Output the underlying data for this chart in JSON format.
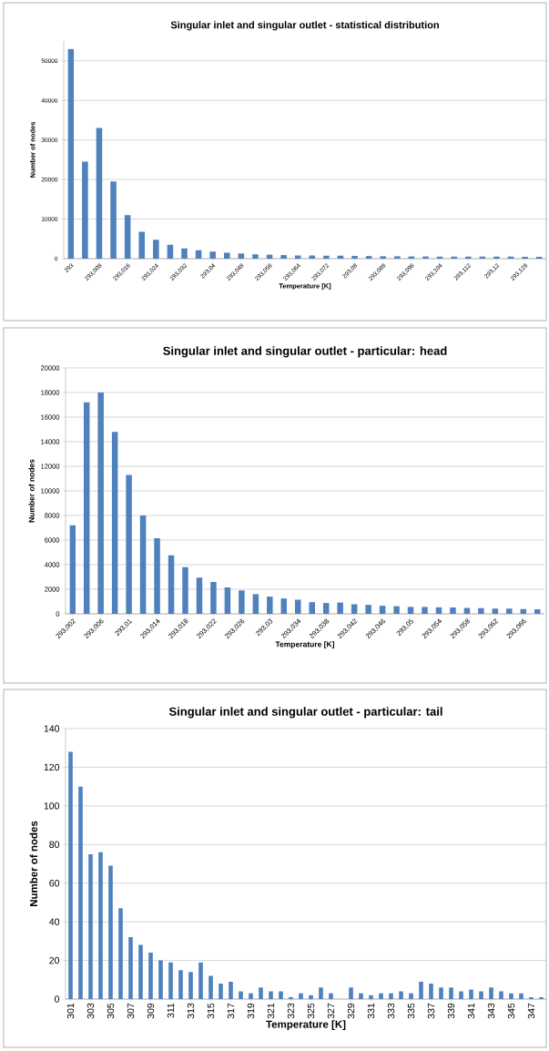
{
  "chart_data": [
    {
      "type": "bar",
      "title": "Singular inlet and singular outlet - statistical distribution",
      "xlabel": "Temperature [K]",
      "ylabel": "Number of nodes",
      "color": "#4f81bd",
      "grid": "y",
      "categories": [
        "293",
        null,
        "293,008",
        null,
        "293,016",
        null,
        "293,024",
        null,
        "293,032",
        null,
        "293,04",
        null,
        "293,048",
        null,
        "293,056",
        null,
        "293,064",
        null,
        "293,072",
        null,
        "293,08",
        null,
        "293,088",
        null,
        "293,096",
        null,
        "293,104",
        null,
        "293,112",
        null,
        "293,12",
        null,
        "293,128",
        null
      ],
      "values": [
        53000,
        24500,
        33000,
        19500,
        11000,
        6800,
        4800,
        3500,
        2600,
        2100,
        1800,
        1500,
        1300,
        1100,
        1000,
        900,
        800,
        800,
        750,
        750,
        700,
        650,
        600,
        600,
        550,
        550,
        500,
        500,
        500,
        500,
        500,
        500,
        450,
        450
      ],
      "ylim": [
        0,
        55000
      ],
      "yticks": [
        0,
        10000,
        20000,
        30000,
        40000,
        50000
      ]
    },
    {
      "type": "bar",
      "title": "Singular inlet and singular outlet - particular: head",
      "xlabel": "Temperature [K]",
      "ylabel": "Number of nodes",
      "color": "#4f81bd",
      "grid": "y",
      "categories": [
        "293,002",
        null,
        "293,006",
        null,
        "293,01",
        null,
        "293,014",
        null,
        "293,018",
        null,
        "293,022",
        null,
        "293,026",
        null,
        "293,03",
        null,
        "293,034",
        null,
        "293,038",
        null,
        "293,042",
        null,
        "293,046",
        null,
        "293,05",
        null,
        "293,054",
        null,
        "293,058",
        null,
        "293,062",
        null,
        "293,066",
        null
      ],
      "values": [
        7200,
        17200,
        18000,
        14800,
        11300,
        8000,
        6150,
        4750,
        3800,
        2950,
        2600,
        2150,
        1900,
        1600,
        1400,
        1250,
        1150,
        950,
        880,
        920,
        780,
        730,
        660,
        620,
        560,
        560,
        530,
        520,
        480,
        460,
        420,
        420,
        380,
        370
      ],
      "ylim": [
        0,
        20000
      ],
      "yticks": [
        0,
        2000,
        4000,
        6000,
        8000,
        10000,
        12000,
        14000,
        16000,
        18000,
        20000
      ]
    },
    {
      "type": "bar",
      "title": "Singular inlet and singular outlet - particular: tail",
      "xlabel": "Temperature [K]",
      "ylabel": "Number of nodes",
      "color": "#4f81bd",
      "grid": "y",
      "categories": [
        "301",
        null,
        "303",
        null,
        "305",
        null,
        "307",
        null,
        "309",
        null,
        "311",
        null,
        "313",
        null,
        "315",
        null,
        "317",
        null,
        "319",
        null,
        "321",
        null,
        "323",
        null,
        "325",
        null,
        "327",
        null,
        "329",
        null,
        "331",
        null,
        "333",
        null,
        "335",
        null,
        "337",
        null,
        "339",
        null,
        "341",
        null,
        "343",
        null,
        "345",
        null,
        "347",
        null
      ],
      "values": [
        128,
        110,
        75,
        76,
        69,
        47,
        32,
        28,
        24,
        20,
        19,
        15,
        14,
        19,
        12,
        8,
        9,
        4,
        3,
        6,
        4,
        4,
        1,
        3,
        2,
        6,
        3,
        0,
        6,
        3,
        2,
        3,
        3,
        4,
        3,
        9,
        8,
        6,
        6,
        4,
        5,
        4,
        6,
        4,
        3,
        3,
        1,
        1
      ],
      "ylim": [
        0,
        140
      ],
      "yticks": [
        0,
        20,
        40,
        60,
        80,
        100,
        120,
        140
      ]
    }
  ]
}
